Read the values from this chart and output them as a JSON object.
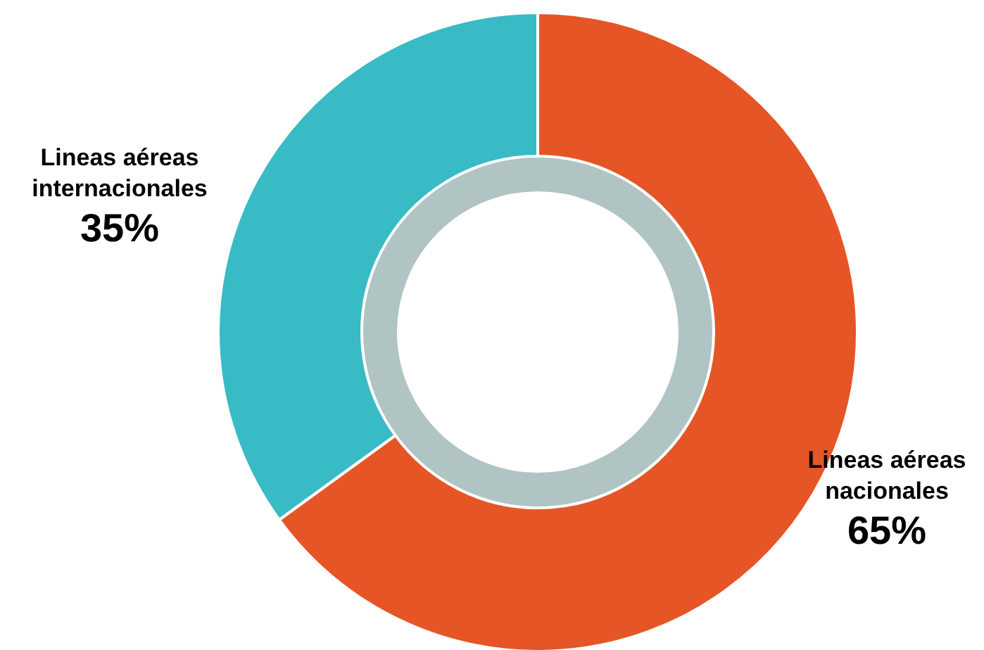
{
  "chart_data": {
    "type": "donut",
    "categories": [
      "Lineas aéreas nacionales",
      "Lineas aéreas internacionales"
    ],
    "values": [
      65,
      35
    ],
    "colors": [
      "#e65525",
      "#38bbc4"
    ],
    "value_labels": [
      "65%",
      "35%"
    ],
    "legend": false
  }
}
